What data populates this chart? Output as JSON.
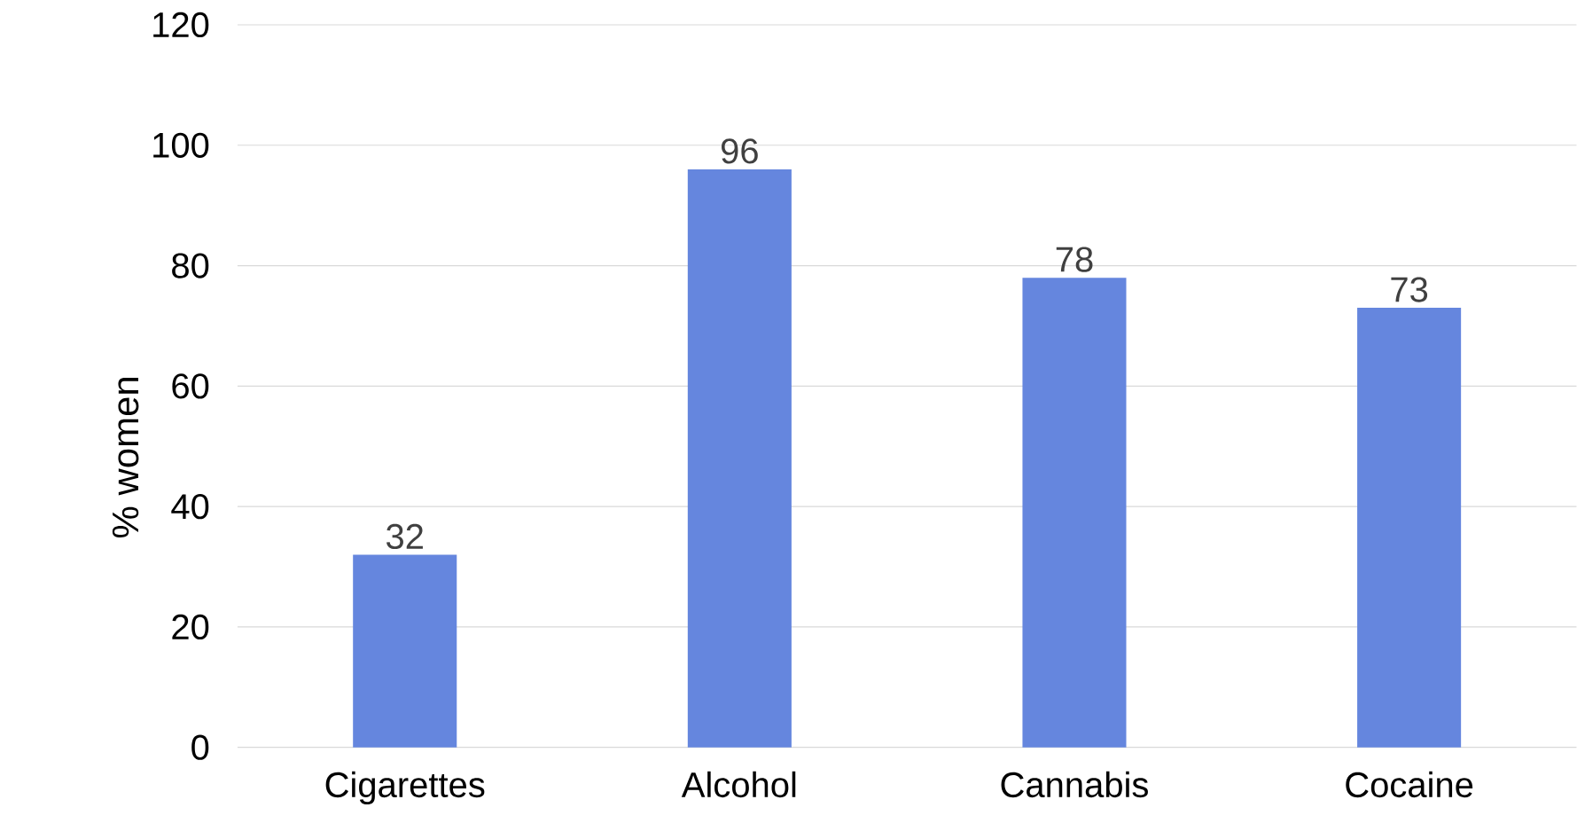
{
  "chart_data": {
    "type": "bar",
    "ylabel": "% women",
    "categories": [
      "Cigarettes",
      "Alcohol",
      "Cannabis",
      "Cocaine"
    ],
    "values": [
      32,
      96,
      78,
      73
    ],
    "color": "#6586de",
    "ylim": [
      0,
      120
    ],
    "yticks": [
      0,
      20,
      40,
      60,
      80,
      100,
      120
    ],
    "grid": "y",
    "data_labels": true
  }
}
